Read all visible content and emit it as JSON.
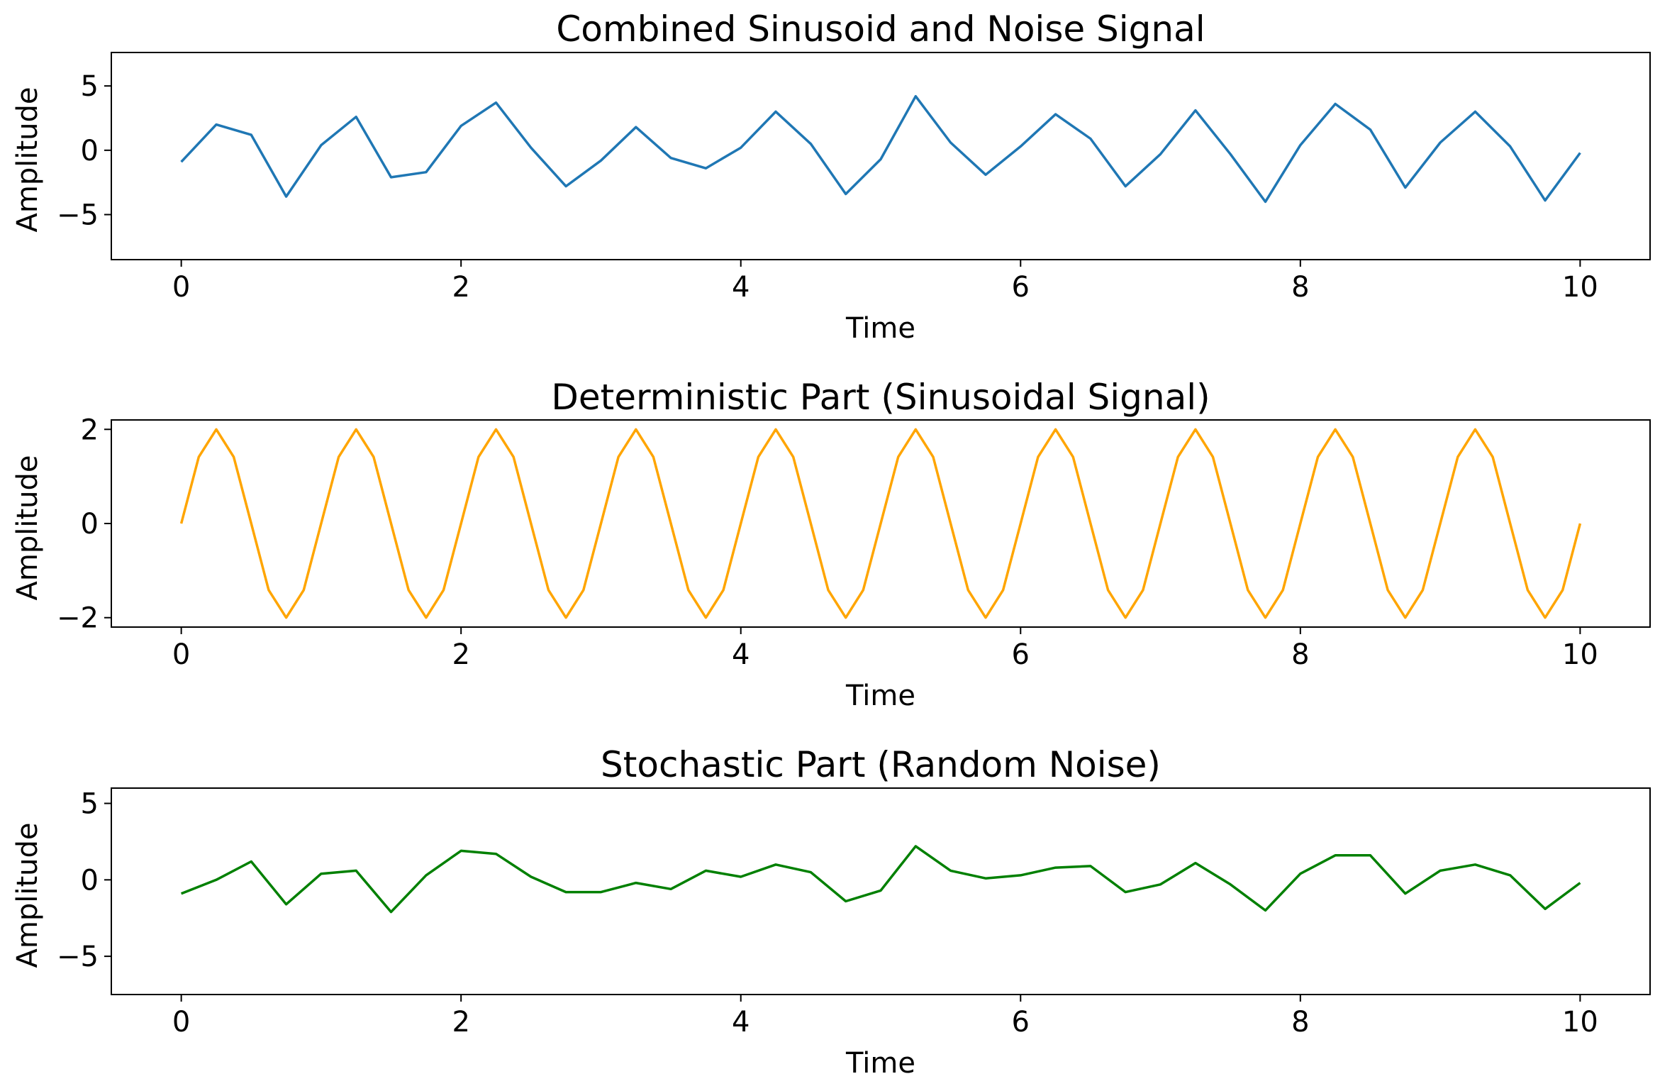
{
  "figure": {
    "background": "#ffffff"
  },
  "chart_data": [
    {
      "type": "line",
      "title": "Combined Sinusoid and Noise Signal",
      "xlabel": "Time",
      "ylabel": "Amplitude",
      "xlim": [
        -0.5,
        10.5
      ],
      "ylim": [
        -8.5,
        7.6
      ],
      "xticks": [
        0,
        2,
        4,
        6,
        8,
        10
      ],
      "xtick_labels": [
        "0",
        "2",
        "4",
        "6",
        "8",
        "10"
      ],
      "yticks": [
        5,
        0,
        -5
      ],
      "ytick_labels": [
        "5",
        "0",
        "−5"
      ],
      "grid": false,
      "series": [
        {
          "color": "#1f77b4",
          "x": [
            0.0,
            0.25,
            0.5,
            0.75,
            1.0,
            1.25,
            1.5,
            1.75,
            2.0,
            2.25,
            2.5,
            2.75,
            3.0,
            3.25,
            3.5,
            3.75,
            4.0,
            4.25,
            4.5,
            4.75,
            5.0,
            5.25,
            5.5,
            5.75,
            6.0,
            6.25,
            6.5,
            6.75,
            7.0,
            7.25,
            7.5,
            7.75,
            8.0,
            8.25,
            8.5,
            8.75,
            9.0,
            9.25,
            9.5,
            9.75,
            10.0
          ],
          "y": [
            -0.9,
            2.0,
            1.2,
            -3.6,
            0.4,
            2.6,
            -2.1,
            -1.7,
            1.9,
            3.7,
            0.2,
            -2.8,
            -0.8,
            1.8,
            -0.6,
            -1.4,
            0.2,
            3.0,
            0.5,
            -3.4,
            -0.7,
            4.2,
            0.6,
            -1.9,
            0.3,
            2.8,
            0.9,
            -2.8,
            -0.3,
            3.1,
            -0.3,
            -4.0,
            0.4,
            3.6,
            1.6,
            -2.9,
            0.6,
            3.0,
            0.3,
            -3.9,
            -0.2
          ]
        }
      ]
    },
    {
      "type": "line",
      "title": "Deterministic Part (Sinusoidal Signal)",
      "xlabel": "Time",
      "ylabel": "Amplitude",
      "xlim": [
        -0.5,
        10.5
      ],
      "ylim": [
        -2.2,
        2.2
      ],
      "xticks": [
        0,
        2,
        4,
        6,
        8,
        10
      ],
      "xtick_labels": [
        "0",
        "2",
        "4",
        "6",
        "8",
        "10"
      ],
      "yticks": [
        2,
        0,
        -2
      ],
      "ytick_labels": [
        "2",
        "0",
        "−2"
      ],
      "grid": false,
      "series": [
        {
          "color": "#ffa500",
          "x": [
            0.0,
            0.125,
            0.25,
            0.375,
            0.5,
            0.625,
            0.75,
            0.875,
            1.0,
            1.125,
            1.25,
            1.375,
            1.5,
            1.625,
            1.75,
            1.875,
            2.0,
            2.125,
            2.25,
            2.375,
            2.5,
            2.625,
            2.75,
            2.875,
            3.0,
            3.125,
            3.25,
            3.375,
            3.5,
            3.625,
            3.75,
            3.875,
            4.0,
            4.125,
            4.25,
            4.375,
            4.5,
            4.625,
            4.75,
            4.875,
            5.0,
            5.125,
            5.25,
            5.375,
            5.5,
            5.625,
            5.75,
            5.875,
            6.0,
            6.125,
            6.25,
            6.375,
            6.5,
            6.625,
            6.75,
            6.875,
            7.0,
            7.125,
            7.25,
            7.375,
            7.5,
            7.625,
            7.75,
            7.875,
            8.0,
            8.125,
            8.25,
            8.375,
            8.5,
            8.625,
            8.75,
            8.875,
            9.0,
            9.125,
            9.25,
            9.375,
            9.5,
            9.625,
            9.75,
            9.875,
            10.0
          ],
          "y": [
            0.0,
            1.414,
            2.0,
            1.414,
            0.0,
            -1.414,
            -2.0,
            -1.414,
            0.0,
            1.414,
            2.0,
            1.414,
            0.0,
            -1.414,
            -2.0,
            -1.414,
            0.0,
            1.414,
            2.0,
            1.414,
            0.0,
            -1.414,
            -2.0,
            -1.414,
            0.0,
            1.414,
            2.0,
            1.414,
            0.0,
            -1.414,
            -2.0,
            -1.414,
            0.0,
            1.414,
            2.0,
            1.414,
            0.0,
            -1.414,
            -2.0,
            -1.414,
            0.0,
            1.414,
            2.0,
            1.414,
            0.0,
            -1.414,
            -2.0,
            -1.414,
            0.0,
            1.414,
            2.0,
            1.414,
            0.0,
            -1.414,
            -2.0,
            -1.414,
            0.0,
            1.414,
            2.0,
            1.414,
            0.0,
            -1.414,
            -2.0,
            -1.414,
            0.0,
            1.414,
            2.0,
            1.414,
            0.0,
            -1.414,
            -2.0,
            -1.414,
            0.0,
            1.414,
            2.0,
            1.414,
            0.0,
            -1.414,
            -2.0,
            -1.414,
            0.0
          ]
        }
      ]
    },
    {
      "type": "line",
      "title": "Stochastic Part (Random Noise)",
      "xlabel": "Time",
      "ylabel": "Amplitude",
      "xlim": [
        -0.5,
        10.5
      ],
      "ylim": [
        -7.5,
        6.0
      ],
      "xticks": [
        0,
        2,
        4,
        6,
        8,
        10
      ],
      "xtick_labels": [
        "0",
        "2",
        "4",
        "6",
        "8",
        "10"
      ],
      "yticks": [
        5,
        0,
        -5
      ],
      "ytick_labels": [
        "5",
        "0",
        "−5"
      ],
      "grid": false,
      "series": [
        {
          "color": "#008000",
          "x": [
            0.0,
            0.25,
            0.5,
            0.75,
            1.0,
            1.25,
            1.5,
            1.75,
            2.0,
            2.25,
            2.5,
            2.75,
            3.0,
            3.25,
            3.5,
            3.75,
            4.0,
            4.25,
            4.5,
            4.75,
            5.0,
            5.25,
            5.5,
            5.75,
            6.0,
            6.25,
            6.5,
            6.75,
            7.0,
            7.25,
            7.5,
            7.75,
            8.0,
            8.25,
            8.5,
            8.75,
            9.0,
            9.25,
            9.5,
            9.75,
            10.0
          ],
          "y": [
            -0.9,
            0.0,
            1.2,
            -1.6,
            0.4,
            0.6,
            -2.1,
            0.3,
            1.9,
            1.7,
            0.2,
            -0.8,
            -0.8,
            -0.2,
            -0.6,
            0.6,
            0.2,
            1.0,
            0.5,
            -1.4,
            -0.7,
            2.2,
            0.6,
            0.1,
            0.3,
            0.8,
            0.9,
            -0.8,
            -0.3,
            1.1,
            -0.3,
            -2.0,
            0.4,
            1.6,
            1.6,
            -0.9,
            0.6,
            1.0,
            0.3,
            -1.9,
            -0.2
          ]
        }
      ]
    }
  ]
}
